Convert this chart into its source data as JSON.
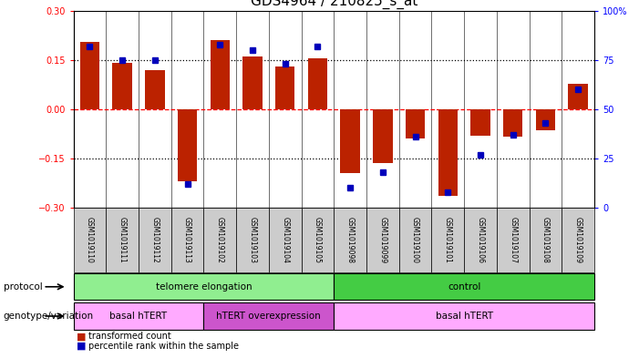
{
  "title": "GDS4964 / 210825_s_at",
  "samples": [
    "GSM1019110",
    "GSM1019111",
    "GSM1019112",
    "GSM1019113",
    "GSM1019102",
    "GSM1019103",
    "GSM1019104",
    "GSM1019105",
    "GSM1019098",
    "GSM1019099",
    "GSM1019100",
    "GSM1019101",
    "GSM1019106",
    "GSM1019107",
    "GSM1019108",
    "GSM1019109"
  ],
  "transformed_count": [
    0.205,
    0.14,
    0.12,
    -0.22,
    0.21,
    0.162,
    0.13,
    0.155,
    -0.195,
    -0.165,
    -0.09,
    -0.265,
    -0.082,
    -0.085,
    -0.065,
    0.077
  ],
  "percentile_rank": [
    82,
    75,
    75,
    12,
    83,
    80,
    73,
    82,
    10,
    18,
    36,
    8,
    27,
    37,
    43,
    60
  ],
  "protocol_groups": [
    {
      "label": "telomere elongation",
      "start": 0,
      "end": 7,
      "color": "#90ee90"
    },
    {
      "label": "control",
      "start": 8,
      "end": 15,
      "color": "#44cc44"
    }
  ],
  "genotype_groups": [
    {
      "label": "basal hTERT",
      "start": 0,
      "end": 3,
      "color": "#ffaaff"
    },
    {
      "label": "hTERT overexpression",
      "start": 4,
      "end": 7,
      "color": "#cc55cc"
    },
    {
      "label": "basal hTERT",
      "start": 8,
      "end": 15,
      "color": "#ffaaff"
    }
  ],
  "bar_color": "#bb2200",
  "dot_color": "#0000bb",
  "ylim": [
    -0.3,
    0.3
  ],
  "yticks_left": [
    -0.3,
    -0.15,
    0,
    0.15,
    0.3
  ],
  "yticks_right": [
    0,
    25,
    50,
    75,
    100
  ],
  "dotted_lines": [
    -0.15,
    0.15
  ],
  "bar_width": 0.6,
  "sample_bg": "#cccccc",
  "title_fontsize": 11,
  "tick_fontsize": 7,
  "sample_fontsize": 5.5,
  "row_fontsize": 7.5,
  "legend_fontsize": 7
}
